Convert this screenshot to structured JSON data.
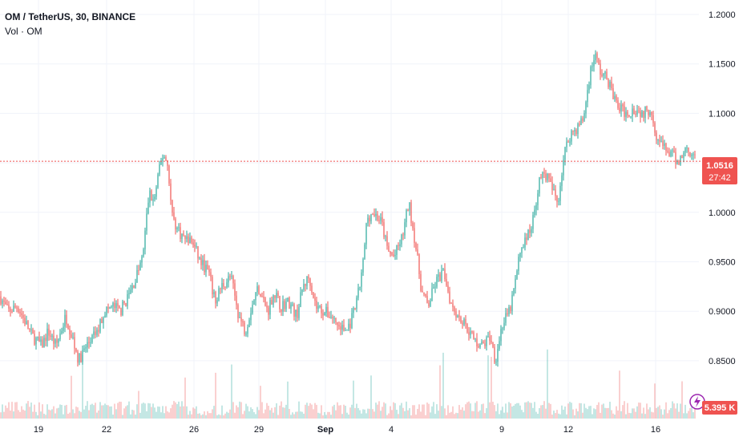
{
  "header": {
    "symbol_title": "OM / TetherUS, 30, BINANCE",
    "volume_label": "Vol · OM"
  },
  "price_badge": {
    "value": "1.0516",
    "countdown": "27:42"
  },
  "volume_badge": {
    "value": "5.395 K"
  },
  "colors": {
    "up": "#26a69a",
    "down": "#ef5350",
    "last_price_line": "#ef5350",
    "grid": "#f0f3fa"
  },
  "icons": {
    "volume_badge_icon": "lightning-icon"
  },
  "chart_data": {
    "type": "candlestick",
    "x_tick_labels": [
      "19",
      "22",
      "26",
      "29",
      "Sep",
      "4",
      "9",
      "12",
      "16"
    ],
    "y_tick_labels": [
      "1.2000",
      "1.1500",
      "1.1000",
      "1.0500",
      "1.0000",
      "0.9500",
      "0.9000",
      "0.8500"
    ],
    "ylim": [
      0.83,
      1.21
    ],
    "last_price": 1.0516,
    "price_path": [
      [
        0,
        0.915
      ],
      [
        10,
        0.9
      ],
      [
        22,
        0.905
      ],
      [
        40,
        0.875
      ],
      [
        52,
        0.865
      ],
      [
        60,
        0.88
      ],
      [
        70,
        0.865
      ],
      [
        82,
        0.895
      ],
      [
        90,
        0.875
      ],
      [
        98,
        0.85
      ],
      [
        108,
        0.865
      ],
      [
        122,
        0.88
      ],
      [
        130,
        0.9
      ],
      [
        142,
        0.905
      ],
      [
        150,
        0.9
      ],
      [
        160,
        0.915
      ],
      [
        168,
        0.93
      ],
      [
        178,
        0.955
      ],
      [
        186,
        1.02
      ],
      [
        192,
        1.01
      ],
      [
        198,
        1.04
      ],
      [
        204,
        1.06
      ],
      [
        210,
        1.045
      ],
      [
        214,
        1.0
      ],
      [
        220,
        0.985
      ],
      [
        228,
        0.975
      ],
      [
        240,
        0.97
      ],
      [
        250,
        0.95
      ],
      [
        260,
        0.94
      ],
      [
        268,
        0.91
      ],
      [
        276,
        0.925
      ],
      [
        288,
        0.935
      ],
      [
        298,
        0.895
      ],
      [
        306,
        0.88
      ],
      [
        314,
        0.905
      ],
      [
        322,
        0.925
      ],
      [
        334,
        0.9
      ],
      [
        342,
        0.92
      ],
      [
        350,
        0.905
      ],
      [
        360,
        0.91
      ],
      [
        370,
        0.895
      ],
      [
        378,
        0.925
      ],
      [
        386,
        0.935
      ],
      [
        394,
        0.905
      ],
      [
        404,
        0.9
      ],
      [
        414,
        0.895
      ],
      [
        422,
        0.885
      ],
      [
        432,
        0.88
      ],
      [
        438,
        0.89
      ],
      [
        444,
        0.905
      ],
      [
        452,
        0.94
      ],
      [
        458,
        0.995
      ],
      [
        466,
        1.0
      ],
      [
        476,
        0.99
      ],
      [
        484,
        0.96
      ],
      [
        492,
        0.955
      ],
      [
        502,
        0.975
      ],
      [
        510,
        1.01
      ],
      [
        518,
        0.97
      ],
      [
        526,
        0.92
      ],
      [
        534,
        0.905
      ],
      [
        544,
        0.93
      ],
      [
        554,
        0.94
      ],
      [
        562,
        0.91
      ],
      [
        572,
        0.895
      ],
      [
        582,
        0.885
      ],
      [
        592,
        0.87
      ],
      [
        602,
        0.865
      ],
      [
        612,
        0.875
      ],
      [
        618,
        0.85
      ],
      [
        626,
        0.885
      ],
      [
        636,
        0.9
      ],
      [
        642,
        0.925
      ],
      [
        650,
        0.965
      ],
      [
        658,
        0.975
      ],
      [
        666,
        0.995
      ],
      [
        672,
        1.03
      ],
      [
        680,
        1.04
      ],
      [
        688,
        1.025
      ],
      [
        696,
        1.01
      ],
      [
        704,
        1.06
      ],
      [
        712,
        1.08
      ],
      [
        720,
        1.085
      ],
      [
        728,
        1.095
      ],
      [
        736,
        1.14
      ],
      [
        742,
        1.16
      ],
      [
        750,
        1.14
      ],
      [
        758,
        1.135
      ],
      [
        764,
        1.12
      ],
      [
        772,
        1.105
      ],
      [
        782,
        1.1
      ],
      [
        792,
        1.105
      ],
      [
        802,
        1.1
      ],
      [
        812,
        1.105
      ],
      [
        820,
        1.075
      ],
      [
        828,
        1.065
      ],
      [
        836,
        1.06
      ],
      [
        846,
        1.05
      ],
      [
        856,
        1.065
      ],
      [
        864,
        1.06
      ],
      [
        868,
        1.0516
      ]
    ],
    "grid": true
  }
}
